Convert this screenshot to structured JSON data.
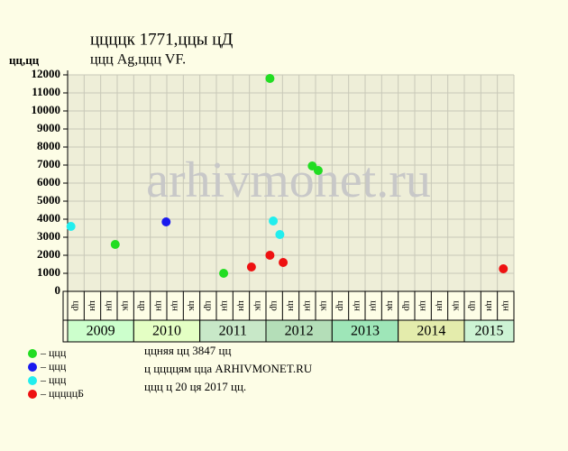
{
  "chart_data": {
    "type": "scatter",
    "title": "ццццк 1771,ццы цД",
    "subtitle": "ццц Ag,ццц VF.",
    "y_label": "цц,цц",
    "watermark": "arhivmonet.ru",
    "footer": [
      "ццняя цц 3847 цц",
      "ц ццццям цца ARHIVMONET.RU",
      "ццц ц 20 ця 2017 цц."
    ],
    "years": [
      "2009",
      "2010",
      "2011",
      "2012",
      "2013",
      "2014",
      "2015"
    ],
    "year_colors": [
      "#ccffcc",
      "#e4ffc4",
      "#c8e8c8",
      "#b4deb8",
      "#9ee6b8",
      "#e4ecac",
      "#cdf3d4"
    ],
    "quarters": [
      "цр",
      "цн",
      "цн",
      "цк",
      "цр",
      "цн",
      "цн",
      "цк",
      "цр",
      "цн",
      "цн",
      "цк",
      "цр",
      "цн",
      "цн",
      "цк",
      "цр",
      "цн",
      "цн",
      "цк",
      "цр",
      "цн",
      "цн",
      "цк",
      "цр",
      "цн",
      "цн"
    ],
    "xlim": [
      2009,
      2015.75
    ],
    "ylim": [
      0,
      12000
    ],
    "yticks": [
      0,
      1000,
      2000,
      3000,
      4000,
      5000,
      6000,
      7000,
      8000,
      9000,
      10000,
      11000,
      12000
    ],
    "grid": true,
    "series": [
      {
        "name": "– ццц",
        "color": "#22dd22",
        "x": [
          2009.72,
          2011.36,
          2012.06,
          2012.7,
          2012.79
        ],
        "values": [
          2600,
          1000,
          11800,
          6950,
          6700
        ]
      },
      {
        "name": "– ццц",
        "color": "#1a1aee",
        "x": [
          2010.49
        ],
        "values": [
          3850
        ]
      },
      {
        "name": "– ццц",
        "color": "#22eeee",
        "x": [
          2009.05,
          2012.11,
          2012.21
        ],
        "values": [
          3600,
          3900,
          3150
        ]
      },
      {
        "name": "– цццццБ",
        "color": "#ee1111",
        "x": [
          2011.78,
          2012.06,
          2012.26,
          2015.59
        ],
        "values": [
          1350,
          2000,
          1600,
          1250
        ]
      }
    ]
  }
}
